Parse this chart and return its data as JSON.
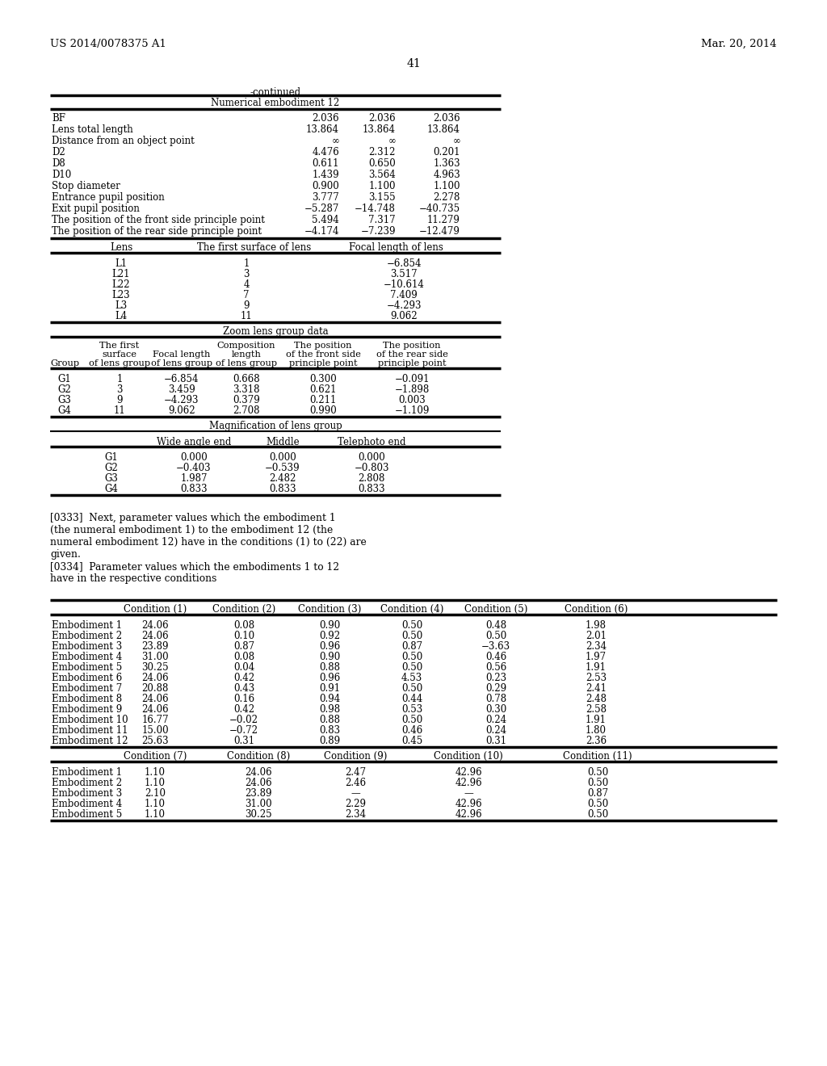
{
  "header_left": "US 2014/0078375 A1",
  "header_right": "Mar. 20, 2014",
  "page_number": "41",
  "continued_label": "-continued",
  "section1_title": "Numerical embodiment 12",
  "section1_rows": [
    [
      "BF",
      "2.036",
      "2.036",
      "2.036"
    ],
    [
      "Lens total length",
      "13.864",
      "13.864",
      "13.864"
    ],
    [
      "Distance from an object point",
      "∞",
      "∞",
      "∞"
    ],
    [
      "D2",
      "4.476",
      "2.312",
      "0.201"
    ],
    [
      "D8",
      "0.611",
      "0.650",
      "1.363"
    ],
    [
      "D10",
      "1.439",
      "3.564",
      "4.963"
    ],
    [
      "Stop diameter",
      "0.900",
      "1.100",
      "1.100"
    ],
    [
      "Entrance pupil position",
      "3.777",
      "3.155",
      "2.278"
    ],
    [
      "Exit pupil position",
      "−5.287",
      "−14.748",
      "−40.735"
    ],
    [
      "The position of the front side principle point",
      "5.494",
      "7.317",
      "11.279"
    ],
    [
      "The position of the rear side principle point",
      "−4.174",
      "−7.239",
      "−12.479"
    ]
  ],
  "section2_headers": [
    "Lens",
    "The first surface of lens",
    "Focal length of lens"
  ],
  "section2_rows": [
    [
      "L1",
      "1",
      "−6.854"
    ],
    [
      "L21",
      "3",
      "3.517"
    ],
    [
      "L22",
      "4",
      "−10.614"
    ],
    [
      "L23",
      "7",
      "7.409"
    ],
    [
      "L3",
      "9",
      "−4.293"
    ],
    [
      "L4",
      "11",
      "9.062"
    ]
  ],
  "section3_title": "Zoom lens group data",
  "section3_rows": [
    [
      "G1",
      "1",
      "−6.854",
      "0.668",
      "0.300",
      "−0.091"
    ],
    [
      "G2",
      "3",
      "3.459",
      "3.318",
      "0.621",
      "−1.898"
    ],
    [
      "G3",
      "9",
      "−4.293",
      "0.379",
      "0.211",
      "0.003"
    ],
    [
      "G4",
      "11",
      "9.062",
      "2.708",
      "0.990",
      "−1.109"
    ]
  ],
  "section4_title": "Magnification of lens group",
  "section4_rows": [
    [
      "G1",
      "0.000",
      "0.000",
      "0.000"
    ],
    [
      "G2",
      "−0.403",
      "−0.539",
      "−0.803"
    ],
    [
      "G3",
      "1.987",
      "2.482",
      "2.808"
    ],
    [
      "G4",
      "0.833",
      "0.833",
      "0.833"
    ]
  ],
  "paragraph_0333_lines": [
    "[0333]  Next, parameter values which the embodiment 1",
    "(the numeral embodiment 1) to the embodiment 12 (the",
    "numeral embodiment 12) have in the conditions (1) to (22) are",
    "given."
  ],
  "paragraph_0334_lines": [
    "[0334]  Parameter values which the embodiments 1 to 12",
    "have in the respective conditions"
  ],
  "section5_rows": [
    [
      "Embodiment 1",
      "24.06",
      "0.08",
      "0.90",
      "0.50",
      "0.48",
      "1.98"
    ],
    [
      "Embodiment 2",
      "24.06",
      "0.10",
      "0.92",
      "0.50",
      "0.50",
      "2.01"
    ],
    [
      "Embodiment 3",
      "23.89",
      "0.87",
      "0.96",
      "0.87",
      "−3.63",
      "2.34"
    ],
    [
      "Embodiment 4",
      "31.00",
      "0.08",
      "0.90",
      "0.50",
      "0.46",
      "1.97"
    ],
    [
      "Embodiment 5",
      "30.25",
      "0.04",
      "0.88",
      "0.50",
      "0.56",
      "1.91"
    ],
    [
      "Embodiment 6",
      "24.06",
      "0.42",
      "0.96",
      "4.53",
      "0.23",
      "2.53"
    ],
    [
      "Embodiment 7",
      "20.88",
      "0.43",
      "0.91",
      "0.50",
      "0.29",
      "2.41"
    ],
    [
      "Embodiment 8",
      "24.06",
      "0.16",
      "0.94",
      "0.44",
      "0.78",
      "2.48"
    ],
    [
      "Embodiment 9",
      "24.06",
      "0.42",
      "0.98",
      "0.53",
      "0.30",
      "2.58"
    ],
    [
      "Embodiment 10",
      "16.77",
      "−0.02",
      "0.88",
      "0.50",
      "0.24",
      "1.91"
    ],
    [
      "Embodiment 11",
      "15.00",
      "−0.72",
      "0.83",
      "0.46",
      "0.24",
      "1.80"
    ],
    [
      "Embodiment 12",
      "25.63",
      "0.31",
      "0.89",
      "0.45",
      "0.31",
      "2.36"
    ]
  ],
  "section6_rows": [
    [
      "Embodiment 1",
      "1.10",
      "24.06",
      "2.47",
      "42.96",
      "0.50"
    ],
    [
      "Embodiment 2",
      "1.10",
      "24.06",
      "2.46",
      "42.96",
      "0.50"
    ],
    [
      "Embodiment 3",
      "2.10",
      "23.89",
      "—",
      "—",
      "0.87"
    ],
    [
      "Embodiment 4",
      "1.10",
      "31.00",
      "2.29",
      "42.96",
      "0.50"
    ],
    [
      "Embodiment 5",
      "1.10",
      "30.25",
      "2.34",
      "42.96",
      "0.50"
    ]
  ]
}
